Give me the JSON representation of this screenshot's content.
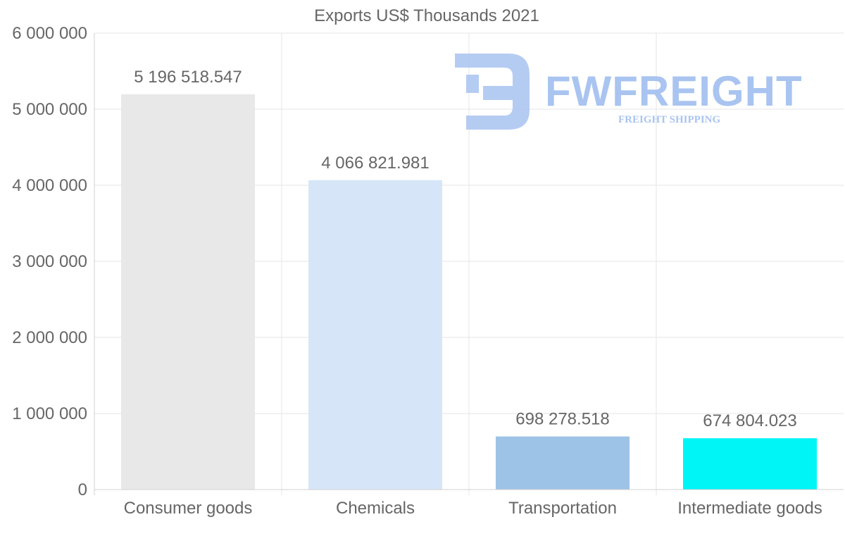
{
  "chart_data": {
    "type": "bar",
    "title": "Exports US$ Thousands 2021",
    "xlabel": "",
    "ylabel": "",
    "ylim": [
      0,
      6000000
    ],
    "yticks": [
      0,
      1000000,
      2000000,
      3000000,
      4000000,
      5000000,
      6000000
    ],
    "ytick_labels": [
      "0",
      "1 000 000",
      "2 000 000",
      "3 000 000",
      "4 000 000",
      "5 000 000",
      "6 000 000"
    ],
    "categories": [
      "Consumer goods",
      "Chemicals",
      "Transportation",
      "Intermediate goods"
    ],
    "values": [
      5196518.547,
      4066821.981,
      698278.518,
      674804.023
    ],
    "value_labels": [
      "5 196 518.547",
      "4 066 821.981",
      "698 278.518",
      "674 804.023"
    ],
    "colors": [
      "#e8e8e8",
      "#d6e6f8",
      "#9dc3e6",
      "#00f5f7"
    ],
    "grid": true,
    "legend": "none"
  },
  "watermark": {
    "name": "FWFREIGHT",
    "tagline": "FREIGHT SHIPPING",
    "color": "#a9c4f0"
  }
}
